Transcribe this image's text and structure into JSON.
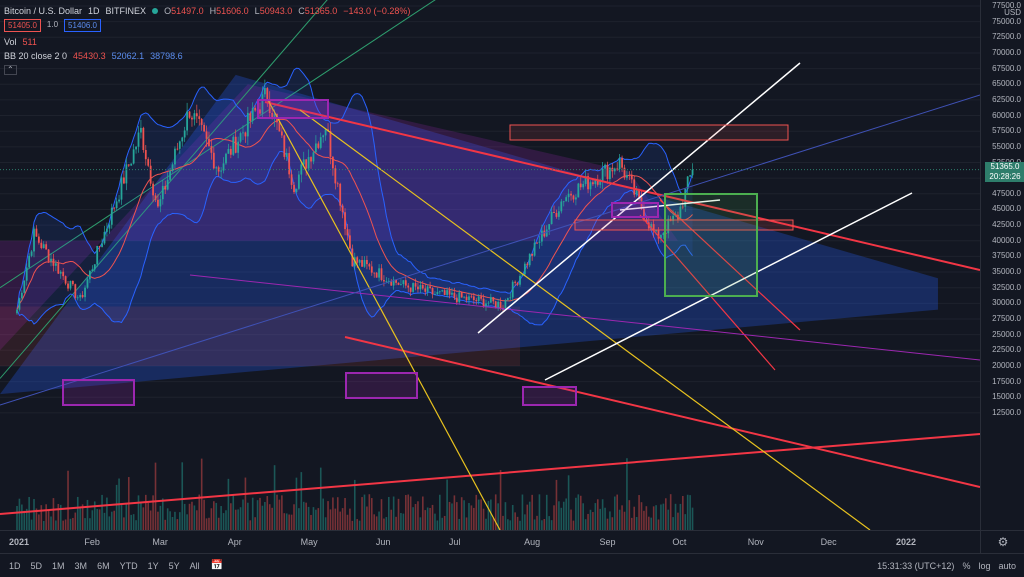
{
  "header": {
    "symbol": "Bitcoin / U.S. Dollar",
    "interval": "1D",
    "exchange": "BITFINEX",
    "ohlc": [
      {
        "k": "O",
        "v": "51497.0"
      },
      {
        "k": "H",
        "v": "51606.0"
      },
      {
        "k": "L",
        "v": "50943.0"
      },
      {
        "k": "C",
        "v": "51365.0"
      }
    ],
    "change": "−143.0 (−0.28%)",
    "sell_price": "51405.0",
    "spread": "1.0",
    "buy_price": "51406.0"
  },
  "indicators": {
    "volume": {
      "label": "Vol",
      "value": "511"
    },
    "bb": {
      "label": "BB 20 close 2 0",
      "basis": "45430.3",
      "upper": "52062.1",
      "lower": "38798.6"
    }
  },
  "price_axis": {
    "currency": "USD",
    "ticks": [
      "77500.0",
      "75000.0",
      "72500.0",
      "70000.0",
      "67500.0",
      "65000.0",
      "62500.0",
      "60000.0",
      "57500.0",
      "55000.0",
      "52500.0",
      "50000.0",
      "47500.0",
      "45000.0",
      "42500.0",
      "40000.0",
      "37500.0",
      "35000.0",
      "32500.0",
      "30000.0",
      "27500.0",
      "25000.0",
      "22500.0",
      "20000.0",
      "17500.0",
      "15000.0",
      "12500.0"
    ],
    "last_price": "51365.0",
    "countdown": "20:28:26"
  },
  "time_axis": {
    "labels": [
      "2021",
      "Feb",
      "Mar",
      "Apr",
      "May",
      "Jun",
      "Jul",
      "Aug",
      "Sep",
      "Oct",
      "Nov",
      "Dec",
      "2022"
    ]
  },
  "bottom_bar": {
    "timeframes": [
      "1D",
      "5D",
      "1M",
      "3M",
      "6M",
      "YTD",
      "1Y",
      "5Y",
      "All"
    ],
    "clock": "15:31:33 (UTC+12)",
    "pct": "%",
    "log": "log",
    "auto": "auto"
  },
  "colors": {
    "background": "#131722",
    "up": "#26a69a",
    "down": "#ef5350",
    "bb_band": "#2962ff",
    "trend_red": "#f23645",
    "trend_yellow": "#e8c21f",
    "trend_white": "#ffffff",
    "trend_violet": "#9c27b0",
    "box_green": "#4caf50",
    "channel_green": "#2e9e6e"
  },
  "chart_data": {
    "type": "candlestick",
    "symbol": "BTCUSD",
    "interval": "1D",
    "x_range": [
      "2021-01-01",
      "2022-01-15"
    ],
    "y_range": [
      10000,
      77500
    ],
    "key_closes": [
      {
        "date": "2021-01-01",
        "close": 29000
      },
      {
        "date": "2021-01-08",
        "close": 41000
      },
      {
        "date": "2021-01-27",
        "close": 30500
      },
      {
        "date": "2021-02-21",
        "close": 57500
      },
      {
        "date": "2021-02-28",
        "close": 45000
      },
      {
        "date": "2021-03-13",
        "close": 61000
      },
      {
        "date": "2021-03-25",
        "close": 51500
      },
      {
        "date": "2021-04-14",
        "close": 63500
      },
      {
        "date": "2021-04-25",
        "close": 49000
      },
      {
        "date": "2021-05-08",
        "close": 58500
      },
      {
        "date": "2021-05-19",
        "close": 37000
      },
      {
        "date": "2021-06-08",
        "close": 33000
      },
      {
        "date": "2021-06-22",
        "close": 31500
      },
      {
        "date": "2021-07-20",
        "close": 29800
      },
      {
        "date": "2021-08-14",
        "close": 47000
      },
      {
        "date": "2021-09-06",
        "close": 52500
      },
      {
        "date": "2021-09-21",
        "close": 40500
      },
      {
        "date": "2021-09-30",
        "close": 44000
      },
      {
        "date": "2021-10-06",
        "close": 51365
      }
    ]
  }
}
